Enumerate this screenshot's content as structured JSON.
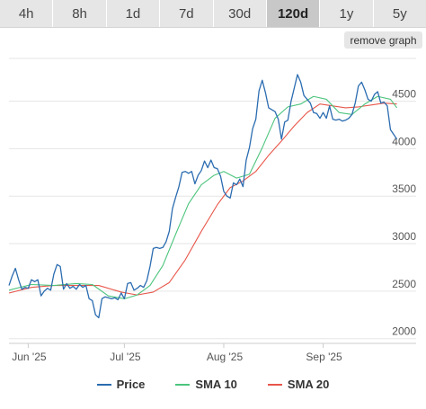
{
  "tabs": [
    {
      "label": "4h",
      "active": false
    },
    {
      "label": "8h",
      "active": false
    },
    {
      "label": "1d",
      "active": false
    },
    {
      "label": "7d",
      "active": false
    },
    {
      "label": "30d",
      "active": false
    },
    {
      "label": "120d",
      "active": true
    },
    {
      "label": "1y",
      "active": false
    },
    {
      "label": "5y",
      "active": false
    }
  ],
  "remove_graph_label": "remove graph",
  "colors": {
    "price": "#2b6cb0",
    "sma10": "#4cc47d",
    "sma20": "#e8564a"
  },
  "chart_data": {
    "type": "line",
    "title": "",
    "xlabel": "",
    "ylabel": "",
    "x_range": [
      "2025-05-26",
      "2025-09-30"
    ],
    "ylim": [
      1950,
      4950
    ],
    "y_ticks": [
      2000,
      2500,
      3000,
      3500,
      4000,
      4500
    ],
    "y_tick_labels": [
      "2000",
      "2500",
      "3000",
      "3500",
      "4000",
      "4500"
    ],
    "x_ticks": [
      {
        "date": "2025-06-01",
        "label": "Jun '25"
      },
      {
        "date": "2025-07-01",
        "label": "Jul '25"
      },
      {
        "date": "2025-08-01",
        "label": "Aug '25"
      },
      {
        "date": "2025-09-01",
        "label": "Sep '25"
      }
    ],
    "legend_position": "bottom",
    "grid": true,
    "series": [
      {
        "name": "Price",
        "color": "#2b6cb0",
        "points": [
          [
            "2025-05-26",
            2560
          ],
          [
            "2025-05-27",
            2660
          ],
          [
            "2025-05-28",
            2740
          ],
          [
            "2025-05-29",
            2620
          ],
          [
            "2025-05-30",
            2520
          ],
          [
            "2025-05-31",
            2540
          ],
          [
            "2025-06-01",
            2530
          ],
          [
            "2025-06-02",
            2620
          ],
          [
            "2025-06-03",
            2600
          ],
          [
            "2025-06-04",
            2620
          ],
          [
            "2025-06-05",
            2450
          ],
          [
            "2025-06-06",
            2500
          ],
          [
            "2025-06-07",
            2530
          ],
          [
            "2025-06-08",
            2510
          ],
          [
            "2025-06-09",
            2680
          ],
          [
            "2025-06-10",
            2780
          ],
          [
            "2025-06-11",
            2760
          ],
          [
            "2025-06-12",
            2520
          ],
          [
            "2025-06-13",
            2580
          ],
          [
            "2025-06-14",
            2530
          ],
          [
            "2025-06-15",
            2550
          ],
          [
            "2025-06-16",
            2520
          ],
          [
            "2025-06-17",
            2570
          ],
          [
            "2025-06-18",
            2540
          ],
          [
            "2025-06-19",
            2560
          ],
          [
            "2025-06-20",
            2420
          ],
          [
            "2025-06-21",
            2400
          ],
          [
            "2025-06-22",
            2250
          ],
          [
            "2025-06-23",
            2220
          ],
          [
            "2025-06-24",
            2420
          ],
          [
            "2025-06-25",
            2440
          ],
          [
            "2025-06-26",
            2430
          ],
          [
            "2025-06-27",
            2420
          ],
          [
            "2025-06-28",
            2430
          ],
          [
            "2025-06-29",
            2410
          ],
          [
            "2025-06-30",
            2480
          ],
          [
            "2025-07-01",
            2420
          ],
          [
            "2025-07-02",
            2580
          ],
          [
            "2025-07-03",
            2590
          ],
          [
            "2025-07-04",
            2510
          ],
          [
            "2025-07-05",
            2530
          ],
          [
            "2025-07-06",
            2560
          ],
          [
            "2025-07-07",
            2540
          ],
          [
            "2025-07-08",
            2610
          ],
          [
            "2025-07-09",
            2760
          ],
          [
            "2025-07-10",
            2950
          ],
          [
            "2025-07-11",
            2960
          ],
          [
            "2025-07-12",
            2950
          ],
          [
            "2025-07-13",
            2960
          ],
          [
            "2025-07-14",
            3020
          ],
          [
            "2025-07-15",
            3130
          ],
          [
            "2025-07-16",
            3370
          ],
          [
            "2025-07-17",
            3490
          ],
          [
            "2025-07-18",
            3600
          ],
          [
            "2025-07-19",
            3750
          ],
          [
            "2025-07-20",
            3760
          ],
          [
            "2025-07-21",
            3740
          ],
          [
            "2025-07-22",
            3760
          ],
          [
            "2025-07-23",
            3630
          ],
          [
            "2025-07-24",
            3720
          ],
          [
            "2025-07-25",
            3770
          ],
          [
            "2025-07-26",
            3870
          ],
          [
            "2025-07-27",
            3800
          ],
          [
            "2025-07-28",
            3880
          ],
          [
            "2025-07-29",
            3800
          ],
          [
            "2025-07-30",
            3790
          ],
          [
            "2025-07-31",
            3710
          ],
          [
            "2025-08-01",
            3550
          ],
          [
            "2025-08-02",
            3500
          ],
          [
            "2025-08-03",
            3480
          ],
          [
            "2025-08-04",
            3640
          ],
          [
            "2025-08-05",
            3620
          ],
          [
            "2025-08-06",
            3680
          ],
          [
            "2025-08-07",
            3600
          ],
          [
            "2025-08-08",
            3880
          ],
          [
            "2025-08-09",
            4010
          ],
          [
            "2025-08-10",
            4210
          ],
          [
            "2025-08-11",
            4310
          ],
          [
            "2025-08-12",
            4610
          ],
          [
            "2025-08-13",
            4720
          ],
          [
            "2025-08-14",
            4590
          ],
          [
            "2025-08-15",
            4430
          ],
          [
            "2025-08-16",
            4410
          ],
          [
            "2025-08-17",
            4390
          ],
          [
            "2025-08-18",
            4310
          ],
          [
            "2025-08-19",
            4100
          ],
          [
            "2025-08-20",
            4280
          ],
          [
            "2025-08-21",
            4300
          ],
          [
            "2025-08-22",
            4500
          ],
          [
            "2025-08-23",
            4640
          ],
          [
            "2025-08-24",
            4780
          ],
          [
            "2025-08-25",
            4700
          ],
          [
            "2025-08-26",
            4560
          ],
          [
            "2025-08-27",
            4520
          ],
          [
            "2025-08-28",
            4480
          ],
          [
            "2025-08-29",
            4380
          ],
          [
            "2025-08-30",
            4370
          ],
          [
            "2025-08-31",
            4320
          ],
          [
            "2025-09-01",
            4380
          ],
          [
            "2025-09-02",
            4320
          ],
          [
            "2025-09-03",
            4450
          ],
          [
            "2025-09-04",
            4310
          ],
          [
            "2025-09-05",
            4300
          ],
          [
            "2025-09-06",
            4310
          ],
          [
            "2025-09-07",
            4290
          ],
          [
            "2025-09-08",
            4300
          ],
          [
            "2025-09-09",
            4320
          ],
          [
            "2025-09-10",
            4360
          ],
          [
            "2025-09-11",
            4480
          ],
          [
            "2025-09-12",
            4660
          ],
          [
            "2025-09-13",
            4700
          ],
          [
            "2025-09-14",
            4620
          ],
          [
            "2025-09-15",
            4520
          ],
          [
            "2025-09-16",
            4500
          ],
          [
            "2025-09-17",
            4570
          ],
          [
            "2025-09-18",
            4600
          ],
          [
            "2025-09-19",
            4480
          ],
          [
            "2025-09-20",
            4490
          ],
          [
            "2025-09-21",
            4450
          ],
          [
            "2025-09-22",
            4200
          ],
          [
            "2025-09-23",
            4150
          ],
          [
            "2025-09-24",
            4100
          ]
        ]
      },
      {
        "name": "SMA 10",
        "color": "#4cc47d",
        "points": [
          [
            "2025-05-26",
            2510
          ],
          [
            "2025-06-02",
            2570
          ],
          [
            "2025-06-09",
            2560
          ],
          [
            "2025-06-16",
            2580
          ],
          [
            "2025-06-21",
            2570
          ],
          [
            "2025-06-26",
            2450
          ],
          [
            "2025-07-01",
            2420
          ],
          [
            "2025-07-05",
            2460
          ],
          [
            "2025-07-09",
            2560
          ],
          [
            "2025-07-13",
            2770
          ],
          [
            "2025-07-17",
            3100
          ],
          [
            "2025-07-21",
            3420
          ],
          [
            "2025-07-25",
            3620
          ],
          [
            "2025-07-29",
            3720
          ],
          [
            "2025-08-01",
            3760
          ],
          [
            "2025-08-05",
            3690
          ],
          [
            "2025-08-09",
            3730
          ],
          [
            "2025-08-13",
            4010
          ],
          [
            "2025-08-17",
            4320
          ],
          [
            "2025-08-21",
            4440
          ],
          [
            "2025-08-25",
            4470
          ],
          [
            "2025-08-29",
            4550
          ],
          [
            "2025-09-02",
            4520
          ],
          [
            "2025-09-06",
            4380
          ],
          [
            "2025-09-10",
            4360
          ],
          [
            "2025-09-14",
            4470
          ],
          [
            "2025-09-18",
            4550
          ],
          [
            "2025-09-22",
            4520
          ],
          [
            "2025-09-24",
            4430
          ]
        ]
      },
      {
        "name": "SMA 20",
        "color": "#e8564a",
        "points": [
          [
            "2025-05-26",
            2480
          ],
          [
            "2025-06-02",
            2540
          ],
          [
            "2025-06-09",
            2560
          ],
          [
            "2025-06-16",
            2560
          ],
          [
            "2025-06-23",
            2560
          ],
          [
            "2025-06-30",
            2490
          ],
          [
            "2025-07-05",
            2460
          ],
          [
            "2025-07-10",
            2490
          ],
          [
            "2025-07-15",
            2590
          ],
          [
            "2025-07-20",
            2830
          ],
          [
            "2025-07-25",
            3130
          ],
          [
            "2025-07-30",
            3410
          ],
          [
            "2025-08-03",
            3590
          ],
          [
            "2025-08-07",
            3660
          ],
          [
            "2025-08-11",
            3760
          ],
          [
            "2025-08-15",
            3930
          ],
          [
            "2025-08-19",
            4080
          ],
          [
            "2025-08-23",
            4240
          ],
          [
            "2025-08-27",
            4380
          ],
          [
            "2025-08-31",
            4470
          ],
          [
            "2025-09-04",
            4450
          ],
          [
            "2025-09-08",
            4430
          ],
          [
            "2025-09-12",
            4440
          ],
          [
            "2025-09-16",
            4460
          ],
          [
            "2025-09-20",
            4480
          ],
          [
            "2025-09-24",
            4470
          ]
        ]
      }
    ]
  }
}
